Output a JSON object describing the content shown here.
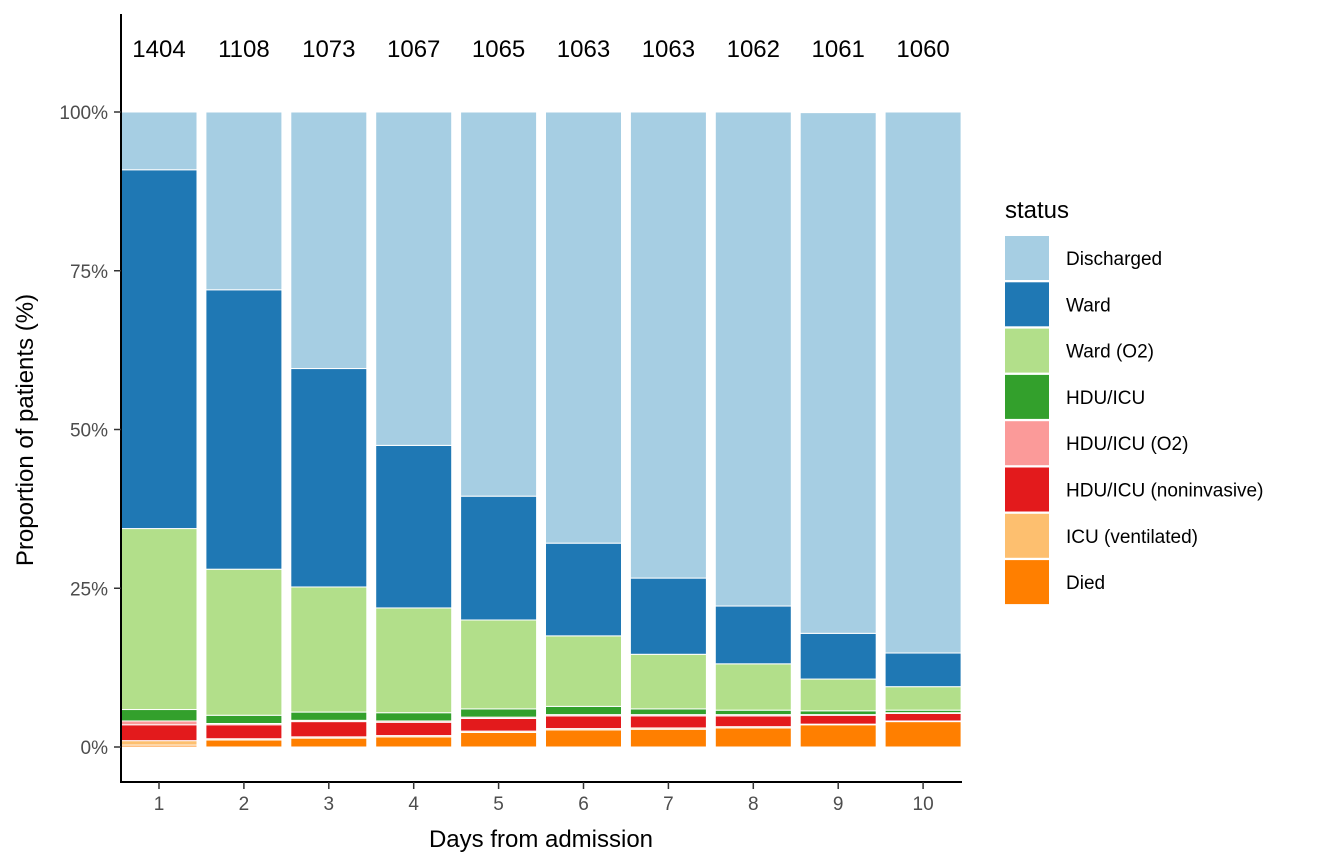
{
  "chart_data": {
    "type": "bar",
    "stacked": true,
    "categories": [
      "1",
      "2",
      "3",
      "4",
      "5",
      "6",
      "7",
      "8",
      "9",
      "10"
    ],
    "counts": [
      "1404",
      "1108",
      "1073",
      "1067",
      "1065",
      "1063",
      "1063",
      "1062",
      "1061",
      "1060"
    ],
    "xlabel": "Days from admission",
    "ylabel": "Proportion of patients (%)",
    "ylim": [
      0,
      100
    ],
    "yticks": [
      0,
      25,
      50,
      75,
      100
    ],
    "ytick_labels": [
      "0%",
      "25%",
      "50%",
      "75%",
      "100%"
    ],
    "legend_title": "status",
    "legend_position": "right",
    "grid": false,
    "series": [
      {
        "name": "Died",
        "color": "#ff7f00",
        "values": [
          0.3,
          1.1,
          1.4,
          1.6,
          2.3,
          2.7,
          2.8,
          3.0,
          3.5,
          4.0
        ]
      },
      {
        "name": "ICU (ventilated)",
        "color": "#fdbf6f",
        "values": [
          0.7,
          0.2,
          0.2,
          0.2,
          0.2,
          0.2,
          0.2,
          0.2,
          0.1,
          0.1
        ]
      },
      {
        "name": "HDU/ICU (noninvasive)",
        "color": "#e31a1c",
        "values": [
          2.5,
          2.2,
          2.4,
          2.1,
          2.0,
          2.0,
          1.9,
          1.7,
          1.4,
          1.2
        ]
      },
      {
        "name": "HDU/ICU (O2)",
        "color": "#fb9a99",
        "values": [
          0.6,
          0.2,
          0.2,
          0.2,
          0.2,
          0.2,
          0.2,
          0.2,
          0.1,
          0.1
        ]
      },
      {
        "name": "HDU/ICU",
        "color": "#33a02c",
        "values": [
          1.8,
          1.3,
          1.3,
          1.3,
          1.3,
          1.3,
          0.9,
          0.7,
          0.6,
          0.4
        ]
      },
      {
        "name": "Ward (O2)",
        "color": "#b2df8a",
        "values": [
          28.5,
          23.0,
          19.7,
          16.5,
          14.0,
          11.1,
          8.6,
          7.3,
          5.0,
          3.7
        ]
      },
      {
        "name": "Ward",
        "color": "#1f78b4",
        "values": [
          56.5,
          44.0,
          34.4,
          25.6,
          19.5,
          14.6,
          12.0,
          9.1,
          7.2,
          5.3
        ]
      },
      {
        "name": "Discharged",
        "color": "#a6cee3",
        "values": [
          9.1,
          28.0,
          40.4,
          52.5,
          60.5,
          67.9,
          73.4,
          77.8,
          82.0,
          85.2
        ]
      }
    ],
    "legend_order": [
      "Discharged",
      "Ward",
      "Ward (O2)",
      "HDU/ICU",
      "HDU/ICU (O2)",
      "HDU/ICU (noninvasive)",
      "ICU (ventilated)",
      "Died"
    ]
  }
}
